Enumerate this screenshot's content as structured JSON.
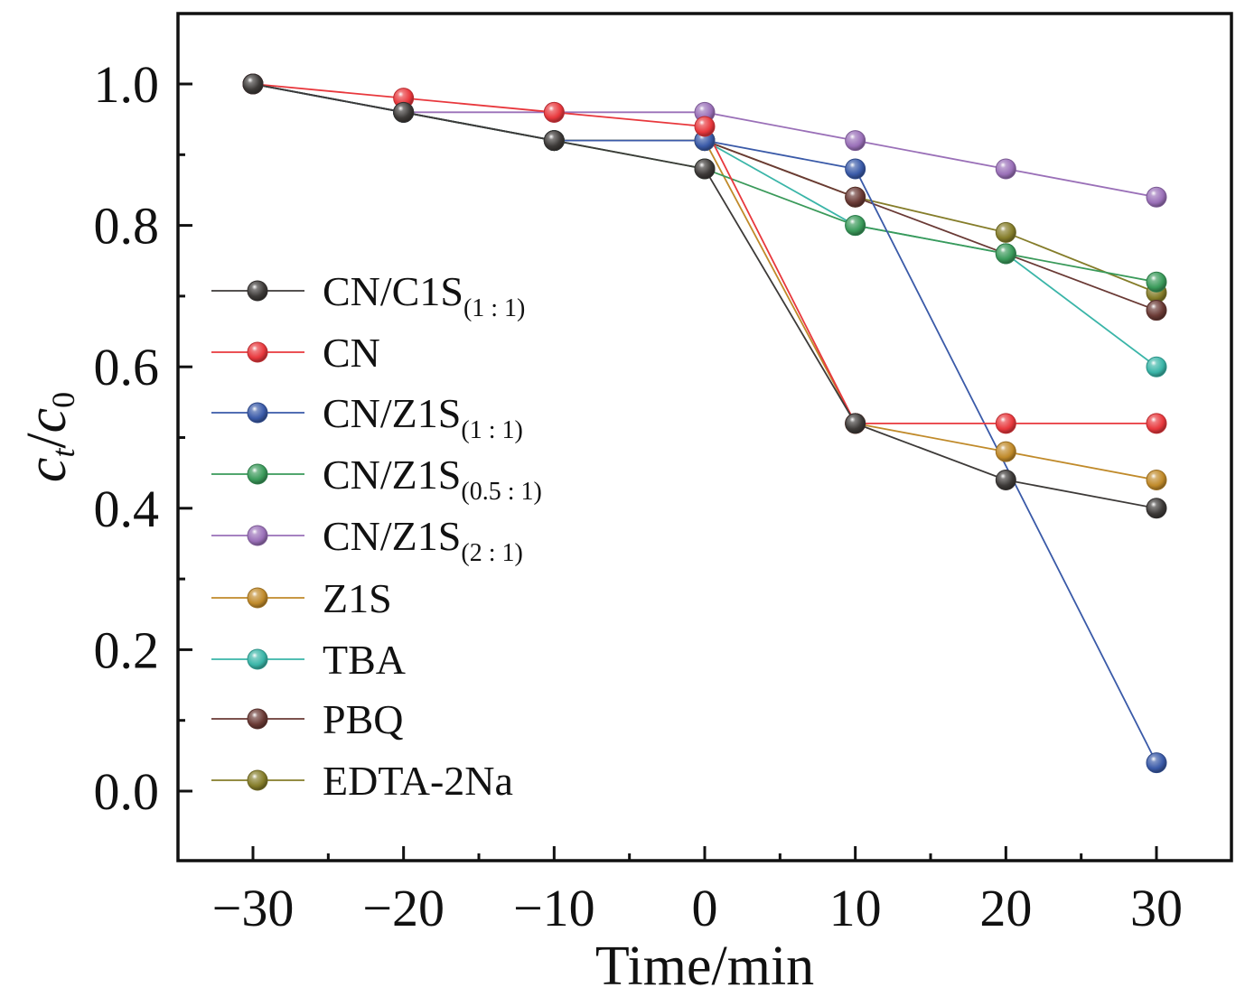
{
  "chart_data": {
    "type": "line",
    "title": "",
    "xlabel": "Time/min",
    "ylabel_main": "c",
    "ylabel_sub_t": "t",
    "ylabel_sep": "/",
    "ylabel_sub_0": "0",
    "xlim": [
      -35,
      35
    ],
    "ylim": [
      -0.1,
      1.1
    ],
    "x_ticks": [
      -30,
      -20,
      -10,
      0,
      10,
      20,
      30
    ],
    "x_tick_labels": [
      "−30",
      "−20",
      "−10",
      "0",
      "10",
      "20",
      "30"
    ],
    "y_ticks": [
      0.0,
      0.2,
      0.4,
      0.6,
      0.8,
      1.0
    ],
    "y_tick_labels": [
      "0.0",
      "0.2",
      "0.4",
      "0.6",
      "0.8",
      "1.0"
    ],
    "grid": false,
    "legend_position": "center-left",
    "x": [
      -30,
      -20,
      -10,
      0,
      10,
      20,
      30
    ],
    "series": [
      {
        "name": "CN/C1S",
        "sub": "(1 : 1)",
        "color": "#3d3a38",
        "values": [
          1.0,
          0.96,
          0.92,
          0.88,
          0.52,
          0.44,
          0.4
        ]
      },
      {
        "name": "CN",
        "sub": "",
        "color": "#e8383d",
        "values": [
          1.0,
          0.98,
          0.96,
          0.94,
          0.52,
          0.52,
          0.52
        ]
      },
      {
        "name": "CN/Z1S",
        "sub": "(1 : 1)",
        "color": "#3a5aa8",
        "values": [
          1.0,
          0.96,
          0.92,
          0.92,
          0.88,
          null,
          0.04
        ]
      },
      {
        "name": "CN/Z1S",
        "sub": "(0.5 : 1)",
        "color": "#3a9a5a",
        "values": [
          1.0,
          0.96,
          0.92,
          0.88,
          0.8,
          0.76,
          0.72
        ]
      },
      {
        "name": "CN/Z1S",
        "sub": "(2 : 1)",
        "color": "#9a70b8",
        "values": [
          1.0,
          0.96,
          0.96,
          0.96,
          0.92,
          0.88,
          0.84
        ]
      },
      {
        "name": "Z1S",
        "sub": "",
        "color": "#c08a2a",
        "values": [
          1.0,
          0.96,
          0.92,
          0.92,
          0.52,
          0.48,
          0.44
        ]
      },
      {
        "name": "TBA",
        "sub": "",
        "color": "#3ab5a8",
        "values": [
          1.0,
          0.96,
          0.92,
          0.92,
          0.8,
          0.76,
          0.6
        ]
      },
      {
        "name": "PBQ",
        "sub": "",
        "color": "#6a3a35",
        "values": [
          1.0,
          0.96,
          0.92,
          0.92,
          0.84,
          0.76,
          0.68
        ]
      },
      {
        "name": "EDTA-2Na",
        "sub": "",
        "color": "#857d2a",
        "values": [
          1.0,
          0.96,
          0.92,
          0.92,
          0.84,
          0.79,
          0.705
        ]
      }
    ]
  }
}
